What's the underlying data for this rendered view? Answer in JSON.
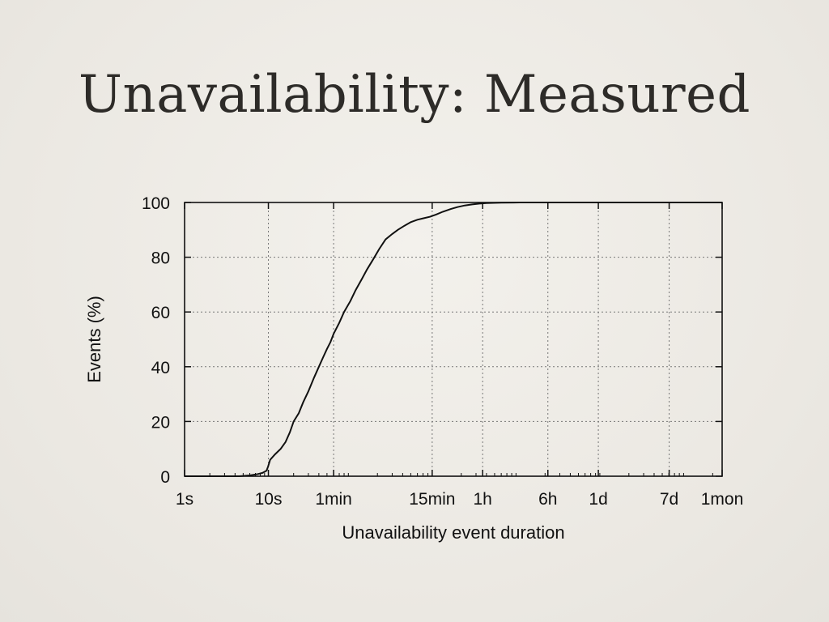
{
  "slide": {
    "title": "Unavailability: Measured"
  },
  "chart_data": {
    "type": "line",
    "xlabel": "Unavailability event duration",
    "ylabel": "Events (%)",
    "x_scale": "log",
    "x_unit": "seconds",
    "xlim": [
      1,
      2592000
    ],
    "ylim": [
      0,
      100
    ],
    "grid": true,
    "x_ticks": [
      {
        "label": "1s",
        "value": 1
      },
      {
        "label": "10s",
        "value": 10
      },
      {
        "label": "1min",
        "value": 60
      },
      {
        "label": "15min",
        "value": 900
      },
      {
        "label": "1h",
        "value": 3600
      },
      {
        "label": "6h",
        "value": 21600
      },
      {
        "label": "1d",
        "value": 86400
      },
      {
        "label": "7d",
        "value": 604800
      },
      {
        "label": "1mon",
        "value": 2592000
      }
    ],
    "y_ticks": [
      {
        "label": "0",
        "value": 0
      },
      {
        "label": "20",
        "value": 20
      },
      {
        "label": "40",
        "value": 40
      },
      {
        "label": "60",
        "value": 60
      },
      {
        "label": "80",
        "value": 80
      },
      {
        "label": "100",
        "value": 100
      }
    ],
    "series": [
      {
        "x": [
          4.5,
          6,
          7.5,
          8.5,
          9.5,
          9.9,
          10.5,
          12,
          14,
          16,
          18,
          20,
          23,
          26,
          30,
          35,
          40,
          45,
          50,
          55,
          60,
          70,
          80,
          95,
          110,
          130,
          150,
          180,
          210,
          250,
          300,
          350,
          420,
          500,
          600,
          700,
          850,
          1000,
          1200,
          1500,
          1800,
          2200,
          2700,
          3300,
          4000,
          6000,
          10000,
          20000,
          50000,
          100000,
          500000,
          1000000,
          2592000
        ],
        "y": [
          0,
          0.3,
          0.8,
          1.2,
          2.0,
          3.5,
          6.0,
          8.0,
          10.0,
          12.5,
          16.0,
          20.0,
          23.0,
          27.0,
          31.0,
          36.0,
          40.0,
          43.5,
          46.5,
          49.0,
          52.0,
          56.0,
          60.0,
          64.0,
          68.0,
          72.0,
          75.5,
          79.5,
          83.0,
          86.5,
          88.5,
          90.0,
          91.5,
          92.8,
          93.7,
          94.2,
          94.8,
          95.6,
          96.6,
          97.6,
          98.3,
          98.9,
          99.3,
          99.6,
          99.8,
          99.9,
          100,
          100,
          100,
          100,
          100,
          100,
          100
        ]
      }
    ]
  }
}
